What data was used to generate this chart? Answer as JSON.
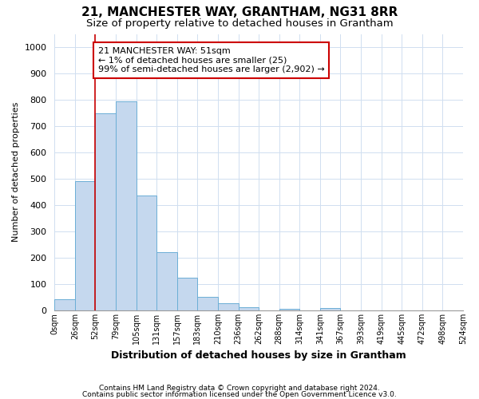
{
  "title": "21, MANCHESTER WAY, GRANTHAM, NG31 8RR",
  "subtitle": "Size of property relative to detached houses in Grantham",
  "xlabel": "Distribution of detached houses by size in Grantham",
  "ylabel": "Number of detached properties",
  "footnote1": "Contains HM Land Registry data © Crown copyright and database right 2024.",
  "footnote2": "Contains public sector information licensed under the Open Government Licence v3.0.",
  "bar_heights": [
    42,
    490,
    750,
    795,
    437,
    220,
    125,
    52,
    28,
    12,
    0,
    5,
    0,
    8,
    0,
    0,
    0,
    0,
    0,
    0
  ],
  "bin_labels": [
    "0sqm",
    "26sqm",
    "52sqm",
    "79sqm",
    "105sqm",
    "131sqm",
    "157sqm",
    "183sqm",
    "210sqm",
    "236sqm",
    "262sqm",
    "288sqm",
    "314sqm",
    "341sqm",
    "367sqm",
    "393sqm",
    "419sqm",
    "445sqm",
    "472sqm",
    "498sqm",
    "524sqm"
  ],
  "bar_color": "#c5d8ee",
  "bar_edge_color": "#6baed6",
  "grid_color": "#d0dff0",
  "red_line_x": 2,
  "annotation_text": "21 MANCHESTER WAY: 51sqm\n← 1% of detached houses are smaller (25)\n99% of semi-detached houses are larger (2,902) →",
  "annotation_box_color": "#ffffff",
  "annotation_box_edge": "#cc0000",
  "ylim": [
    0,
    1050
  ],
  "yticks": [
    0,
    100,
    200,
    300,
    400,
    500,
    600,
    700,
    800,
    900,
    1000
  ],
  "background_color": "#ffffff",
  "title_fontsize": 11,
  "subtitle_fontsize": 9.5
}
